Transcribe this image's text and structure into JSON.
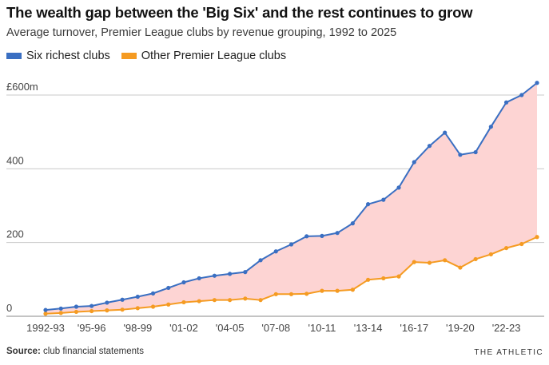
{
  "title": "The wealth gap between the 'Big Six' and the rest continues to grow",
  "subtitle": "Average turnover, Premier League clubs by revenue grouping, 1992 to 2025",
  "source_label": "Source:",
  "source_text": "club financial statements",
  "brand": "THE ATHLETIC",
  "colors": {
    "big_six": "#3a6fc2",
    "others": "#f59b22",
    "gap_fill": "#fdd4d3",
    "grid": "#c8c8c8",
    "baseline": "#8a8a8a"
  },
  "chart_data": {
    "type": "line",
    "x": [
      "1992-93",
      "1993-94",
      "1994-95",
      "1995-96",
      "1996-97",
      "1997-98",
      "1998-99",
      "1999-00",
      "2000-01",
      "2001-02",
      "2002-03",
      "2003-04",
      "2004-05",
      "2005-06",
      "2006-07",
      "2007-08",
      "2008-09",
      "2009-10",
      "2010-11",
      "2011-12",
      "2012-13",
      "2013-14",
      "2014-15",
      "2015-16",
      "2016-17",
      "2017-18",
      "2018-19",
      "2019-20",
      "2020-21",
      "2021-22",
      "2022-23",
      "2023-24",
      "2024-25"
    ],
    "x_tick_labels": [
      "1992-93",
      "'95-96",
      "'98-99",
      "'01-02",
      "'04-05",
      "'07-08",
      "'10-11",
      "'13-14",
      "'16-17",
      "'19-20",
      "'22-23"
    ],
    "series": [
      {
        "name": "Six richest clubs",
        "color": "#3a6fc2",
        "values": [
          17,
          21,
          26,
          28,
          37,
          45,
          53,
          62,
          77,
          92,
          103,
          110,
          115,
          120,
          152,
          176,
          195,
          217,
          218,
          226,
          252,
          304,
          316,
          349,
          418,
          462,
          498,
          438,
          445,
          514,
          580,
          600,
          633
        ]
      },
      {
        "name": "Other Premier League clubs",
        "color": "#f59b22",
        "values": [
          7,
          9,
          12,
          14,
          16,
          18,
          22,
          26,
          32,
          38,
          41,
          44,
          44,
          48,
          44,
          60,
          60,
          61,
          69,
          69,
          72,
          99,
          103,
          108,
          147,
          145,
          152,
          132,
          155,
          168,
          185,
          196,
          215
        ]
      }
    ],
    "y_ticks": [
      0,
      200,
      400,
      600
    ],
    "y_tick_labels": [
      "0",
      "200",
      "400",
      "£600m"
    ],
    "ylim": [
      0,
      640
    ],
    "grid": true,
    "gap_shaded": true,
    "legend_position": "top-left"
  }
}
